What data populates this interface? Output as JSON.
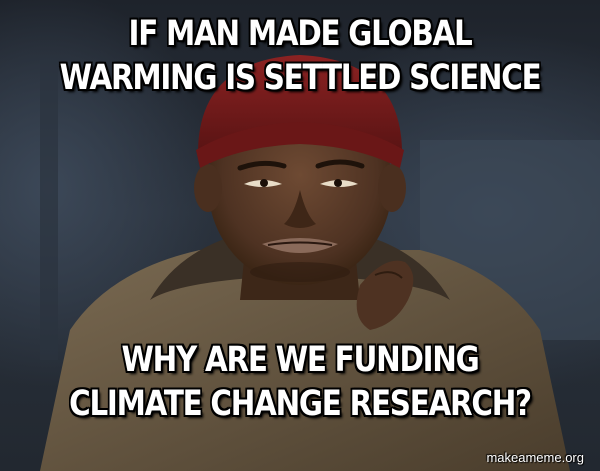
{
  "meme": {
    "top_text": "IF MAN MADE GLOBAL WARMING IS SETTLED SCIENCE",
    "bottom_text": "WHY ARE WE FUNDING CLIMATE CHANGE RESEARCH?",
    "watermark": "makeameme.org"
  },
  "colors": {
    "caption_fill": "#ffffff",
    "caption_outline": "#000000",
    "beanie": "#7a1a1a",
    "skin": "#5a3a28",
    "jacket": "#6b5a43",
    "background": "#2a323d"
  },
  "image_subject": "man-in-red-beanie"
}
